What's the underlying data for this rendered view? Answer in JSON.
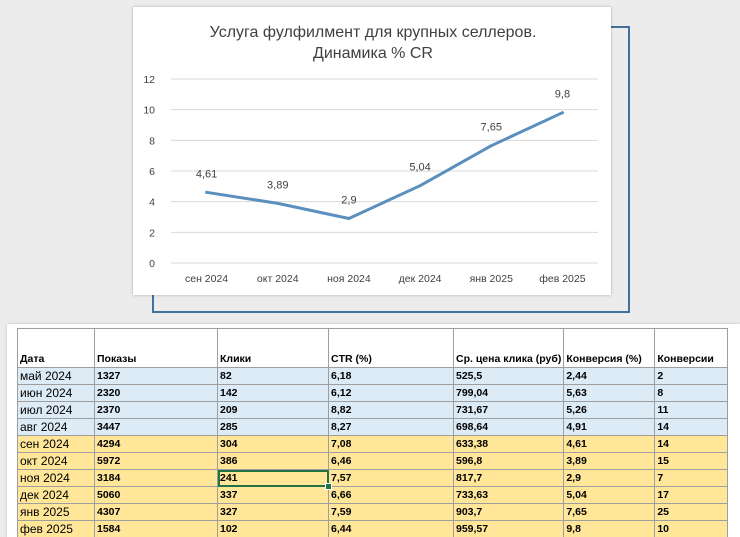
{
  "chart_data": {
    "type": "line",
    "title": "Услуга фулфилмент для крупных селлеров.",
    "subtitle": "Динамика % CR",
    "categories": [
      "сен 2024",
      "окт 2024",
      "ноя 2024",
      "дек 2024",
      "янв 2025",
      "фев 2025"
    ],
    "series": [
      {
        "values": [
          4.61,
          3.89,
          2.9,
          5.04,
          7.65,
          9.8
        ]
      }
    ],
    "data_labels": [
      "4,61",
      "3,89",
      "2,9",
      "5,04",
      "7,65",
      "9,8"
    ],
    "y_ticks": [
      "0",
      "2",
      "4",
      "6",
      "8",
      "10",
      "12"
    ],
    "ylim": [
      0,
      12
    ],
    "grid": true,
    "line_color": "#5b8fbd"
  },
  "table": {
    "headers": [
      "Дата",
      "Показы",
      "Клики",
      "CTR (%)",
      "Ср. цена клика (руб)",
      "Конверсия (%)",
      "Конверсии"
    ],
    "rows": [
      [
        "май 2024",
        "1327",
        "82",
        "6,18",
        "525,5",
        "2,44",
        "2"
      ],
      [
        "июн 2024",
        "2320",
        "142",
        "6,12",
        "799,04",
        "5,63",
        "8"
      ],
      [
        "июл 2024",
        "2370",
        "209",
        "8,82",
        "731,67",
        "5,26",
        "11"
      ],
      [
        "авг 2024",
        "3447",
        "285",
        "8,27",
        "698,64",
        "4,91",
        "14"
      ],
      [
        "сен 2024",
        "4294",
        "304",
        "7,08",
        "633,38",
        "4,61",
        "14"
      ],
      [
        "окт 2024",
        "5972",
        "386",
        "6,46",
        "596,8",
        "3,89",
        "15"
      ],
      [
        "ноя 2024",
        "3184",
        "241",
        "7,57",
        "817,7",
        "2,9",
        "7"
      ],
      [
        "дек 2024",
        "5060",
        "337",
        "6,66",
        "733,63",
        "5,04",
        "17"
      ],
      [
        "янв 2025",
        "4307",
        "327",
        "7,59",
        "903,7",
        "7,65",
        "25"
      ],
      [
        "фев 2025",
        "1584",
        "102",
        "6,44",
        "959,57",
        "9,8",
        "10"
      ]
    ],
    "row_colors": [
      "blue",
      "blue",
      "blue",
      "blue",
      "yellow",
      "yellow",
      "yellow",
      "yellow",
      "yellow",
      "yellow"
    ],
    "colors": {
      "blue": "#ddebf7",
      "yellow": "#ffe699",
      "selection": "#217346"
    }
  }
}
